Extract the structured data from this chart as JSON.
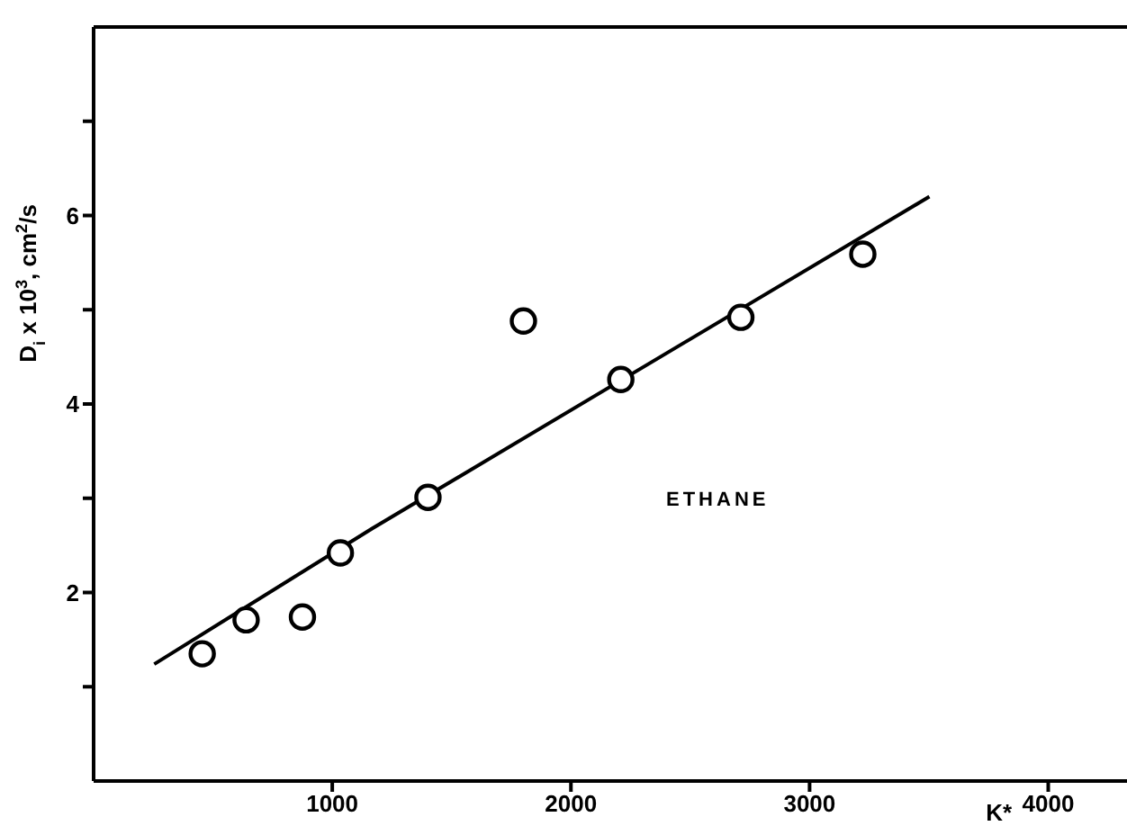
{
  "chart_data": {
    "type": "scatter",
    "xlabel": "K*",
    "ylabel": "D$_{i}$ x 10$^{3}$, cm$^{2}$/s",
    "annotations": [
      "ETHANE"
    ],
    "series": [
      {
        "color": "#000000",
        "marker": "circle",
        "x": [
          455,
          639,
          875,
          1034,
          1401,
          1801,
          2209,
          2712,
          3223
        ],
        "values": [
          1.35,
          1.71,
          1.74,
          2.42,
          3.01,
          4.88,
          4.26,
          4.92,
          5.59
        ]
      },
      {
        "type": "line",
        "color": "#000000",
        "marker": "none",
        "line_style": "solid",
        "x": [
          254,
          1168,
          3502
        ],
        "values": [
          1.24,
          2.68,
          6.2
        ]
      }
    ],
    "xlim": [
      0,
      4330
    ],
    "xticks": [
      1000,
      2000,
      3000,
      4000
    ],
    "ylim": [
      0,
      8
    ],
    "yticks": [
      {
        "value": 1,
        "label": null
      },
      2,
      {
        "value": 3,
        "label": null
      },
      4,
      {
        "value": 5,
        "label": null
      },
      6,
      {
        "value": 7,
        "label": null
      }
    ],
    "grid": false,
    "legend": false
  }
}
